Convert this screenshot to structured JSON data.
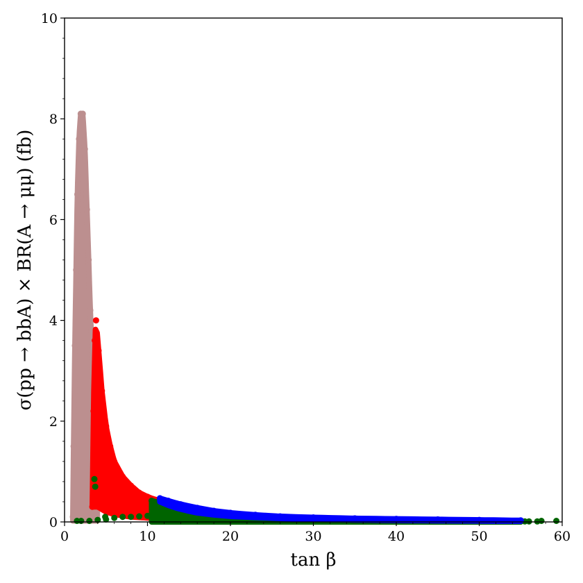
{
  "chart_data": {
    "type": "scatter",
    "title": "",
    "xlabel": "tan β",
    "ylabel": "σ(pp → bbA) × BR(A → μμ) (fb)",
    "xlim": [
      0,
      60
    ],
    "ylim": [
      0,
      10
    ],
    "x_ticks": [
      0,
      10,
      20,
      30,
      40,
      50,
      60
    ],
    "y_ticks": [
      0,
      2,
      4,
      6,
      8,
      10
    ],
    "grid": false,
    "legend": "none",
    "series": [
      {
        "color": "#bc8f8f",
        "region": "envelope",
        "upper": [
          [
            1.0,
            0.1
          ],
          [
            1.1,
            1.5
          ],
          [
            1.25,
            3.5
          ],
          [
            1.4,
            5.0
          ],
          [
            1.55,
            6.5
          ],
          [
            1.75,
            7.6
          ],
          [
            1.95,
            8.1
          ],
          [
            2.2,
            8.1
          ],
          [
            2.45,
            7.4
          ],
          [
            2.7,
            6.2
          ],
          [
            2.9,
            5.2
          ],
          [
            3.1,
            4.2
          ],
          [
            3.3,
            3.4
          ],
          [
            3.5,
            2.6
          ],
          [
            3.7,
            1.8
          ],
          [
            3.85,
            1.3
          ],
          [
            3.95,
            0.9
          ]
        ],
        "lower_y": 0.02
      },
      {
        "color": "#ff0000",
        "region": "envelope",
        "upper": [
          [
            3.35,
            0.3
          ],
          [
            3.5,
            2.2
          ],
          [
            3.65,
            3.6
          ],
          [
            3.8,
            4.0
          ],
          [
            4.1,
            3.4
          ],
          [
            4.5,
            2.6
          ],
          [
            5.0,
            1.9
          ],
          [
            5.5,
            1.5
          ],
          [
            6.0,
            1.2
          ],
          [
            7.0,
            0.9
          ],
          [
            8.0,
            0.72
          ],
          [
            9.0,
            0.58
          ],
          [
            10.0,
            0.5
          ],
          [
            11.0,
            0.44
          ]
        ],
        "lower": [
          [
            3.35,
            0.3
          ],
          [
            4.0,
            0.3
          ],
          [
            5.0,
            0.2
          ],
          [
            6.0,
            0.15
          ],
          [
            8.0,
            0.1
          ],
          [
            10.0,
            0.08
          ],
          [
            11.0,
            0.08
          ]
        ]
      },
      {
        "color": "#006400",
        "region": "envelope",
        "upper": [
          [
            10.5,
            0.42
          ],
          [
            11.5,
            0.38
          ],
          [
            13.0,
            0.3
          ],
          [
            15.0,
            0.23
          ],
          [
            18.0,
            0.15
          ],
          [
            21.0,
            0.1
          ],
          [
            25.0,
            0.07
          ],
          [
            30.0,
            0.04
          ],
          [
            40.0,
            0.02
          ],
          [
            50.0,
            0.01
          ],
          [
            55.0,
            0.01
          ]
        ],
        "lower_y": 0.0
      },
      {
        "color": "#006400",
        "region": "points",
        "points": [
          [
            1.5,
            0.02
          ],
          [
            2.0,
            0.02
          ],
          [
            3.0,
            0.02
          ],
          [
            4.0,
            0.04
          ],
          [
            5.0,
            0.05
          ],
          [
            6.0,
            0.08
          ],
          [
            7.0,
            0.1
          ],
          [
            8.0,
            0.1
          ],
          [
            9.0,
            0.11
          ],
          [
            10.0,
            0.12
          ],
          [
            3.6,
            0.85
          ],
          [
            3.7,
            0.7
          ],
          [
            4.9,
            0.1
          ],
          [
            55.5,
            0.01
          ],
          [
            56.0,
            0.01
          ],
          [
            57.0,
            0.01
          ],
          [
            57.5,
            0.02
          ],
          [
            59.3,
            0.02
          ]
        ]
      },
      {
        "color": "#0000ff",
        "region": "envelope",
        "upper": [
          [
            11.5,
            0.47
          ],
          [
            12.5,
            0.42
          ],
          [
            14.0,
            0.35
          ],
          [
            16.0,
            0.28
          ],
          [
            18.0,
            0.22
          ],
          [
            20.0,
            0.18
          ],
          [
            23.0,
            0.14
          ],
          [
            26.0,
            0.11
          ],
          [
            30.0,
            0.09
          ],
          [
            35.0,
            0.07
          ],
          [
            40.0,
            0.06
          ],
          [
            45.0,
            0.05
          ],
          [
            50.0,
            0.04
          ],
          [
            55.0,
            0.03
          ]
        ],
        "lower": [
          [
            11.5,
            0.4
          ],
          [
            12.5,
            0.33
          ],
          [
            14.0,
            0.25
          ],
          [
            16.0,
            0.18
          ],
          [
            18.0,
            0.14
          ],
          [
            20.0,
            0.11
          ],
          [
            23.0,
            0.09
          ],
          [
            26.0,
            0.07
          ],
          [
            30.0,
            0.05
          ],
          [
            35.0,
            0.04
          ],
          [
            40.0,
            0.03
          ],
          [
            45.0,
            0.025
          ],
          [
            50.0,
            0.02
          ],
          [
            55.0,
            0.015
          ]
        ]
      }
    ]
  }
}
